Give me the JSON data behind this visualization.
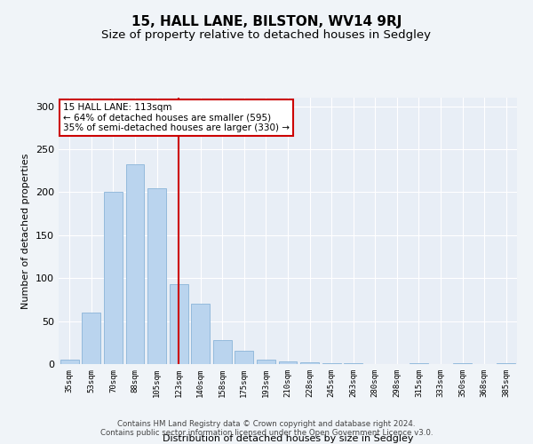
{
  "title": "15, HALL LANE, BILSTON, WV14 9RJ",
  "subtitle": "Size of property relative to detached houses in Sedgley",
  "xlabel": "Distribution of detached houses by size in Sedgley",
  "ylabel": "Number of detached properties",
  "categories": [
    "35sqm",
    "53sqm",
    "70sqm",
    "88sqm",
    "105sqm",
    "123sqm",
    "140sqm",
    "158sqm",
    "175sqm",
    "193sqm",
    "210sqm",
    "228sqm",
    "245sqm",
    "263sqm",
    "280sqm",
    "298sqm",
    "315sqm",
    "333sqm",
    "350sqm",
    "368sqm",
    "385sqm"
  ],
  "values": [
    5,
    60,
    200,
    233,
    205,
    93,
    70,
    28,
    15,
    5,
    3,
    2,
    1,
    1,
    0,
    0,
    1,
    0,
    1,
    0,
    1
  ],
  "bar_color": "#bad4ee",
  "bar_edge_color": "#8ab4d8",
  "vline_x": 5.0,
  "vline_color": "#cc0000",
  "annotation_text": "15 HALL LANE: 113sqm\n← 64% of detached houses are smaller (595)\n35% of semi-detached houses are larger (330) →",
  "annotation_box_color": "#ffffff",
  "annotation_box_edge": "#cc0000",
  "footer1": "Contains HM Land Registry data © Crown copyright and database right 2024.",
  "footer2": "Contains public sector information licensed under the Open Government Licence v3.0.",
  "bg_color": "#f0f4f8",
  "plot_bg_color": "#e8eef6",
  "ylim": [
    0,
    310
  ],
  "yticks": [
    0,
    50,
    100,
    150,
    200,
    250,
    300
  ],
  "title_fontsize": 11,
  "subtitle_fontsize": 9.5
}
